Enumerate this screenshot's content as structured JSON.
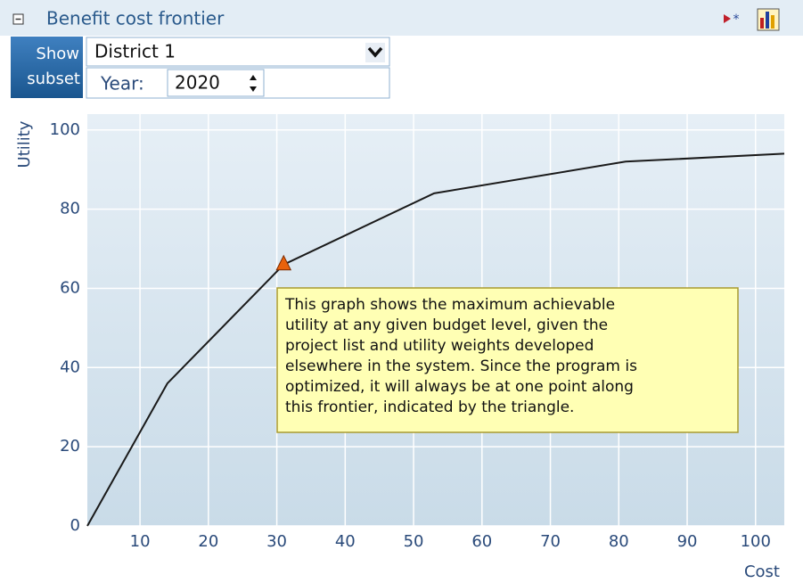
{
  "header": {
    "title": "Benefit cost frontier"
  },
  "controls": {
    "button": [
      "Show",
      "subset"
    ],
    "district": "District 1",
    "year_label": "Year:",
    "year": "2020"
  },
  "chart_data": {
    "type": "line",
    "x_label": "Cost",
    "y_label": "Utility",
    "x": [
      2.3,
      14,
      31,
      53,
      81,
      104.2
    ],
    "series": [
      {
        "color": "#1a1a1a",
        "values": [
          0,
          36,
          66,
          84,
          92,
          94
        ]
      }
    ],
    "marker": {
      "x": 31,
      "y": 66,
      "color": "#e8620c"
    },
    "annotation": [
      "This graph shows the maximum achievable",
      "utility at any given budget level, given the",
      "project list and utility weights developed",
      "elsewhere in the system. Since the program is",
      "optimized, it will always be at one point along",
      "this frontier, indicated by the triangle."
    ],
    "xlim": [
      2.3,
      104.2
    ],
    "ylim": [
      0,
      104
    ],
    "xticks": [
      10,
      20,
      30,
      40,
      50,
      60,
      70,
      80,
      90,
      100
    ],
    "yticks": [
      0,
      20,
      40,
      60,
      80,
      100
    ],
    "grid": true
  }
}
